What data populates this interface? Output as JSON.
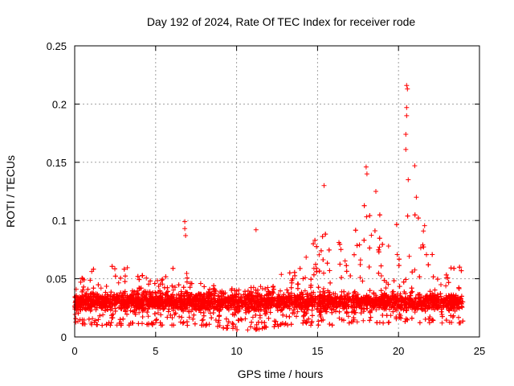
{
  "chart_data": {
    "type": "scatter",
    "title": "Day 192 of 2024, Rate Of TEC Index for receiver rode",
    "xlabel": "GPS time / hours",
    "ylabel": "ROTI / TECUs",
    "xlim": [
      0,
      25
    ],
    "ylim": [
      0,
      0.25
    ],
    "x_ticks": [
      0,
      5,
      10,
      15,
      20,
      25
    ],
    "x_tick_labels": [
      "0",
      "5",
      "10",
      "15",
      "20",
      "25"
    ],
    "y_ticks": [
      0,
      0.05,
      0.1,
      0.15,
      0.2,
      0.25
    ],
    "y_tick_labels": [
      "0",
      "0.05",
      "0.1",
      "0.15",
      "0.2",
      "0.25"
    ],
    "grid": true,
    "marker": "plus",
    "series_color": "#ff0000",
    "data_x_range": [
      0,
      24
    ],
    "approx_baseline_roti": 0.025,
    "outliers": [
      {
        "x": 6.8,
        "y": 0.099
      },
      {
        "x": 6.8,
        "y": 0.093
      },
      {
        "x": 6.85,
        "y": 0.087
      },
      {
        "x": 11.2,
        "y": 0.092
      },
      {
        "x": 15.4,
        "y": 0.13
      },
      {
        "x": 18.0,
        "y": 0.146
      },
      {
        "x": 18.05,
        "y": 0.14
      },
      {
        "x": 18.6,
        "y": 0.125
      },
      {
        "x": 20.5,
        "y": 0.216
      },
      {
        "x": 20.55,
        "y": 0.213
      },
      {
        "x": 20.5,
        "y": 0.197
      },
      {
        "x": 20.5,
        "y": 0.19
      },
      {
        "x": 20.45,
        "y": 0.174
      },
      {
        "x": 20.45,
        "y": 0.161
      },
      {
        "x": 21.0,
        "y": 0.147
      },
      {
        "x": 20.6,
        "y": 0.135
      },
      {
        "x": 21.1,
        "y": 0.12
      }
    ],
    "envelope": [
      {
        "x": 0.0,
        "hi": 0.045,
        "lo": 0.012
      },
      {
        "x": 1.0,
        "hi": 0.058,
        "lo": 0.01
      },
      {
        "x": 2.0,
        "hi": 0.062,
        "lo": 0.01
      },
      {
        "x": 3.0,
        "hi": 0.06,
        "lo": 0.01
      },
      {
        "x": 4.0,
        "hi": 0.065,
        "lo": 0.01
      },
      {
        "x": 5.0,
        "hi": 0.05,
        "lo": 0.01
      },
      {
        "x": 6.0,
        "hi": 0.06,
        "lo": 0.01
      },
      {
        "x": 7.0,
        "hi": 0.055,
        "lo": 0.01
      },
      {
        "x": 8.0,
        "hi": 0.045,
        "lo": 0.01
      },
      {
        "x": 9.0,
        "hi": 0.045,
        "lo": 0.008
      },
      {
        "x": 10.0,
        "hi": 0.04,
        "lo": 0.006
      },
      {
        "x": 11.0,
        "hi": 0.045,
        "lo": 0.006
      },
      {
        "x": 12.0,
        "hi": 0.05,
        "lo": 0.008
      },
      {
        "x": 13.0,
        "hi": 0.055,
        "lo": 0.01
      },
      {
        "x": 14.0,
        "hi": 0.065,
        "lo": 0.01
      },
      {
        "x": 15.0,
        "hi": 0.09,
        "lo": 0.01
      },
      {
        "x": 16.0,
        "hi": 0.09,
        "lo": 0.01
      },
      {
        "x": 17.0,
        "hi": 0.08,
        "lo": 0.012
      },
      {
        "x": 18.0,
        "hi": 0.12,
        "lo": 0.012
      },
      {
        "x": 19.0,
        "hi": 0.11,
        "lo": 0.012
      },
      {
        "x": 20.0,
        "hi": 0.1,
        "lo": 0.012
      },
      {
        "x": 21.0,
        "hi": 0.11,
        "lo": 0.012
      },
      {
        "x": 22.0,
        "hi": 0.09,
        "lo": 0.012
      },
      {
        "x": 23.0,
        "hi": 0.065,
        "lo": 0.012
      },
      {
        "x": 24.0,
        "hi": 0.06,
        "lo": 0.012
      }
    ]
  }
}
